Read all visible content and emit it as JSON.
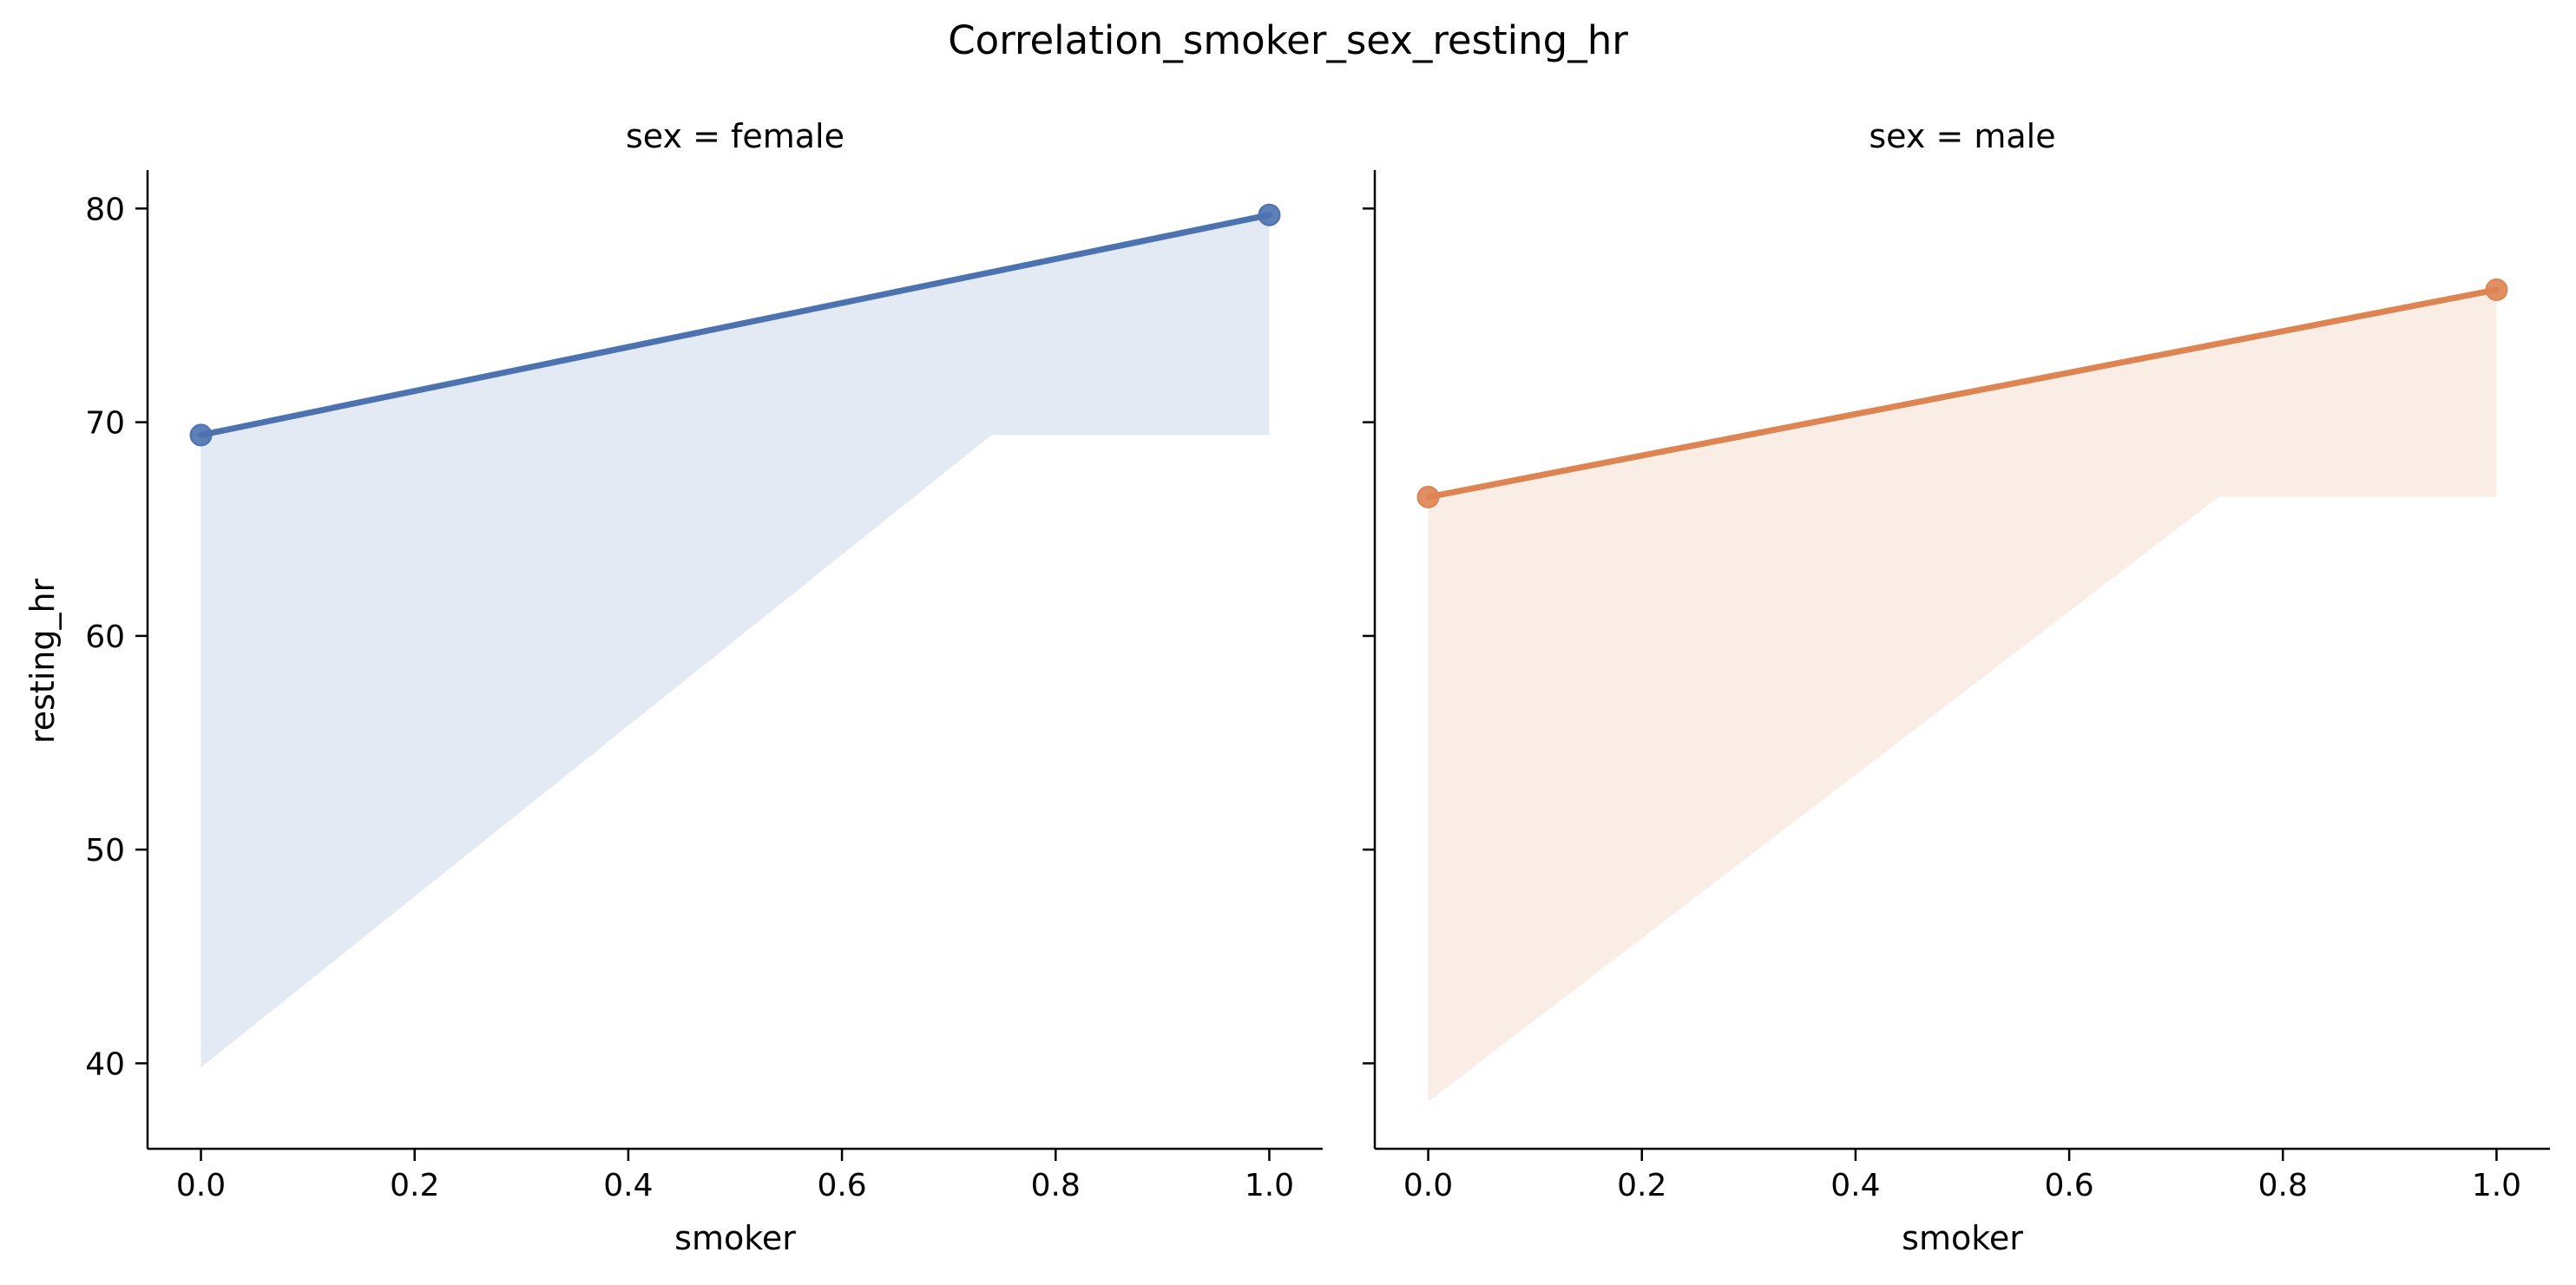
{
  "chart_data": {
    "type": "line",
    "title": "Correlation_smoker_sex_resting_hr",
    "ylabel": "resting_hr",
    "sharey": true,
    "ylim": [
      36,
      81.8
    ],
    "yticks": [
      40,
      50,
      60,
      70,
      80
    ],
    "grid": false,
    "legend": "none",
    "panels": [
      {
        "title": "sex = female",
        "xlabel": "smoker",
        "xlim": [
          -0.05,
          1.05
        ],
        "xticks": [
          "0.0",
          "0.2",
          "0.4",
          "0.6",
          "0.8",
          "1.0"
        ],
        "color": "#4c72b0",
        "band_color": "#4c72b0",
        "x": [
          0.0,
          1.0
        ],
        "y": [
          69.4,
          79.7
        ],
        "ci_band": {
          "x": [
            0.0,
            0.74,
            0.75,
            1.0
          ],
          "upper": [
            69.4,
            77.0,
            77.1,
            79.7
          ],
          "lower": [
            39.8,
            69.4,
            69.4,
            69.4
          ]
        }
      },
      {
        "title": "sex = male",
        "xlabel": "smoker",
        "xlim": [
          -0.05,
          1.05
        ],
        "xticks": [
          "0.0",
          "0.2",
          "0.4",
          "0.6",
          "0.8",
          "1.0"
        ],
        "color": "#dd8452",
        "band_color": "#dd8452",
        "x": [
          0.0,
          1.0
        ],
        "y": [
          66.5,
          76.2
        ],
        "ci_band": {
          "x": [
            0.0,
            0.74,
            0.75,
            1.0
          ],
          "upper": [
            66.5,
            73.7,
            73.8,
            76.2
          ],
          "lower": [
            38.2,
            66.5,
            66.5,
            66.5
          ]
        }
      }
    ]
  }
}
